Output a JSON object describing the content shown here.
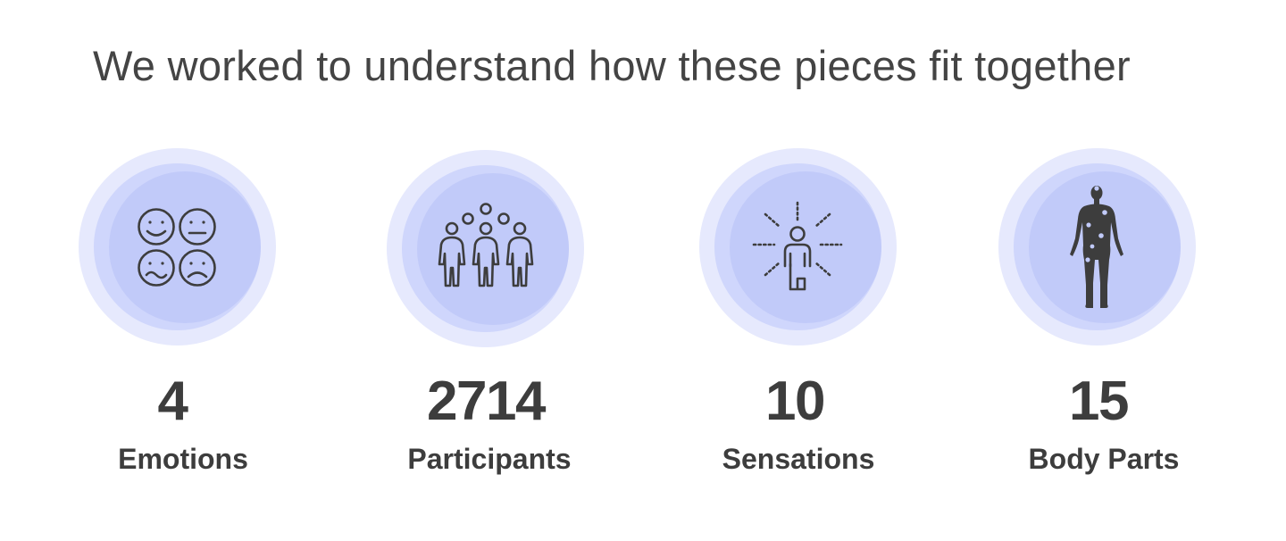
{
  "headline": "We worked to understand how these pieces fit together",
  "colors": {
    "ring_outer": "#e6e9fd",
    "ring_mid": "#cfd6fc",
    "ring_inner": "#c1caf9",
    "icon": "#3d3d3d",
    "text": "#3d3d3d"
  },
  "stats": [
    {
      "value": "4",
      "label": "Emotions",
      "icon": "emotion-faces-icon"
    },
    {
      "value": "2714",
      "label": "Participants",
      "icon": "participants-group-icon"
    },
    {
      "value": "10",
      "label": "Sensations",
      "icon": "person-radiating-icon"
    },
    {
      "value": "15",
      "label": "Body Parts",
      "icon": "human-body-icon"
    }
  ]
}
